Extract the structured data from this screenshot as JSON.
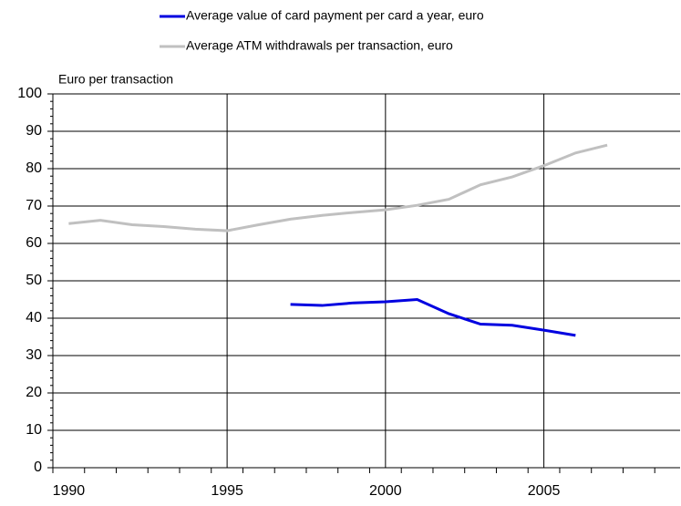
{
  "chart_data": {
    "type": "line",
    "y_axis_label": "Euro per transaction",
    "x": [
      1990,
      1991,
      1992,
      1993,
      1994,
      1995,
      1996,
      1997,
      1998,
      1999,
      2000,
      2001,
      2002,
      2003,
      2004,
      2005,
      2006,
      2007
    ],
    "series": [
      {
        "name": "Average value of card payment per card a year, euro",
        "color": "#0000e0",
        "values": [
          null,
          null,
          null,
          null,
          null,
          null,
          null,
          43.7,
          43.4,
          44.1,
          44.4,
          45,
          41.2,
          38.4,
          38.1,
          36.8,
          35.4,
          null
        ]
      },
      {
        "name": "Average ATM withdrawals per transaction, euro",
        "color": "#c0c0c0",
        "values": [
          65.3,
          66.2,
          65,
          64.5,
          63.8,
          63.4,
          65,
          66.5,
          67.5,
          68.3,
          69,
          70.2,
          71.8,
          75.7,
          77.8,
          80.8,
          84.2,
          86.3
        ]
      }
    ],
    "xlim": [
      1989.5,
      2009.3
    ],
    "xticks": [
      1990,
      1995,
      2000,
      2005
    ],
    "ylim": [
      0,
      100
    ],
    "yticks": [
      0,
      10,
      20,
      30,
      40,
      50,
      60,
      70,
      80,
      90,
      100
    ],
    "grid": true
  }
}
